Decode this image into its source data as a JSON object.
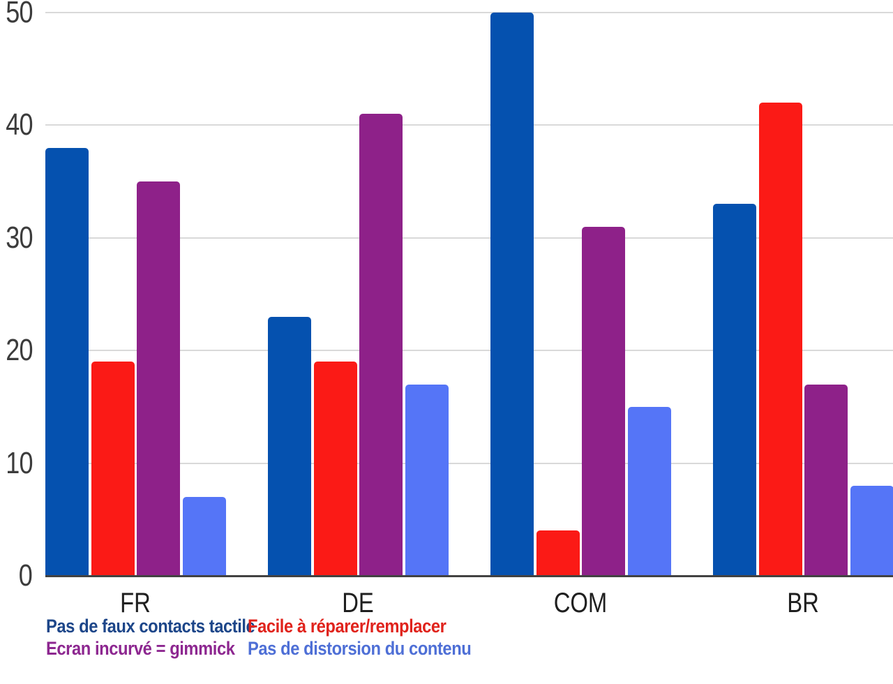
{
  "chart_data": {
    "type": "bar",
    "title": "",
    "categories": [
      "FR",
      "DE",
      "COM",
      "BR"
    ],
    "series": [
      {
        "name": "Pas de faux contacts tactile",
        "color": "#0551af",
        "legend_text_color": "#1d4689",
        "values": [
          38,
          23,
          50,
          33
        ]
      },
      {
        "name": "Facile à réparer/remplacer",
        "color": "#fb1a16",
        "legend_text_color": "#e0231c",
        "values": [
          19,
          19,
          4,
          42
        ]
      },
      {
        "name": "Ecran incurvé = gimmick",
        "color": "#8e2189",
        "legend_text_color": "#8d2790",
        "values": [
          35,
          41,
          31,
          17
        ]
      },
      {
        "name": "Pas de distorsion du contenu",
        "color": "#5575f7",
        "legend_text_color": "#4e6fd6",
        "values": [
          7,
          17,
          15,
          8
        ]
      }
    ],
    "xlabel": "",
    "ylabel": "",
    "ylim": [
      0,
      50
    ],
    "yticks": [
      0,
      10,
      20,
      30,
      40,
      50
    ],
    "grid": true,
    "legend_position": "bottom-left, two columns × two rows",
    "background_color": "#ffffff",
    "axis_color": "#424242",
    "gridline_color": "#d9d9d9",
    "tick_label_color": "#3c3c3c",
    "category_label_color": "#1f1f1f"
  }
}
